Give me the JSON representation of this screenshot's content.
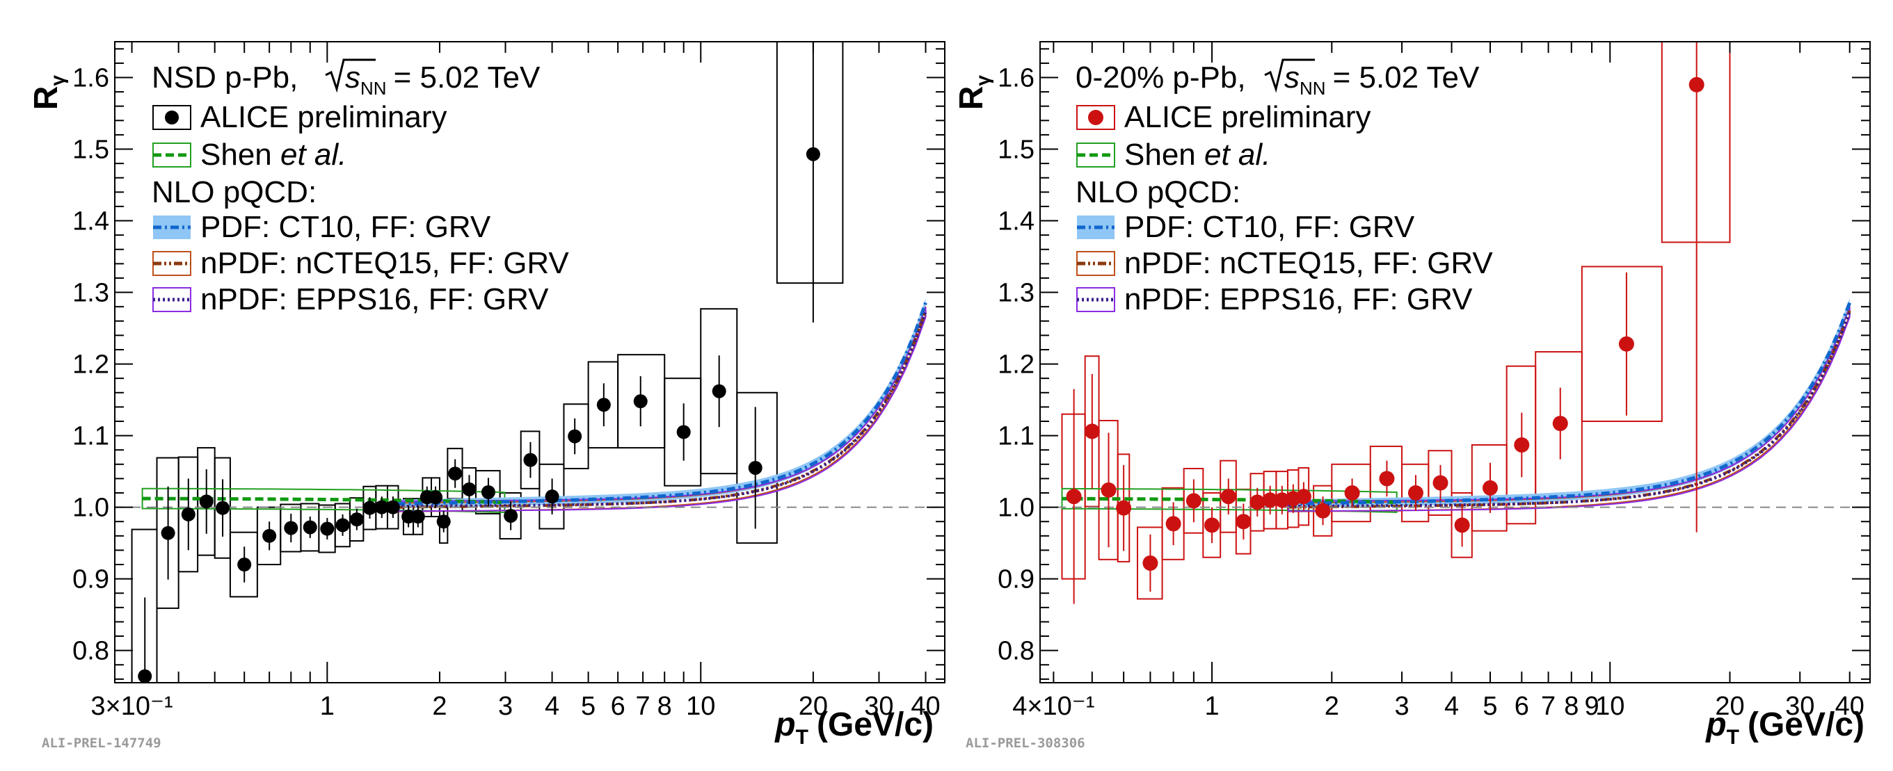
{
  "chart_data": [
    {
      "type": "scatter",
      "xscale": "log",
      "xlim": [
        0.27,
        45
      ],
      "ylim": [
        0.755,
        1.65
      ],
      "ylabel": "R",
      "ylabel_sub": "γ",
      "xlabel_prefix": "p",
      "xlabel_sub": "T",
      "xlabel_unit": "(GeV/c)",
      "yticks": [
        "0.8",
        "0.9",
        "1.0",
        "1.1",
        "1.2",
        "1.3",
        "1.4",
        "1.5",
        "1.6"
      ],
      "xticks": [
        {
          "v": 0.3,
          "label": "3×10⁻¹"
        },
        {
          "v": 1,
          "label": "1"
        },
        {
          "v": 2,
          "label": "2"
        },
        {
          "v": 3,
          "label": "3"
        },
        {
          "v": 4,
          "label": "4"
        },
        {
          "v": 5,
          "label": "5"
        },
        {
          "v": 6,
          "label": "6"
        },
        {
          "v": 7,
          "label": "7"
        },
        {
          "v": 8,
          "label": "8"
        },
        {
          "v": 10,
          "label": "10"
        },
        {
          "v": 20,
          "label": "20"
        },
        {
          "v": 30,
          "label": "30"
        },
        {
          "v": 40,
          "label": "40"
        }
      ],
      "system_text": "NSD p-Pb,",
      "sqrt_s": "s",
      "sqrt_s_sub": "NN",
      "energy_text": "= 5.02 TeV",
      "legend": [
        "ALICE preliminary",
        "Shen",
        "et al.",
        "NLO pQCD:",
        "PDF: CT10, FF: GRV",
        "nPDF: nCTEQ15, FF: GRV",
        "nPDF: EPPS16, FF: GRV"
      ],
      "prelim_tag": "ALI-PREL-147749",
      "marker_color": "#000000",
      "series": [
        {
          "name": "ALICE preliminary",
          "points": [
            {
              "x": 0.325,
              "y": 0.764,
              "stat": 0.11,
              "sys": 0.205,
              "xlo": 0.3,
              "xhi": 0.35
            },
            {
              "x": 0.375,
              "y": 0.964,
              "stat": 0.065,
              "sys": 0.105,
              "xlo": 0.35,
              "xhi": 0.4
            },
            {
              "x": 0.425,
              "y": 0.99,
              "stat": 0.05,
              "sys": 0.08,
              "xlo": 0.4,
              "xhi": 0.45
            },
            {
              "x": 0.475,
              "y": 1.008,
              "stat": 0.045,
              "sys": 0.075,
              "xlo": 0.45,
              "xhi": 0.5
            },
            {
              "x": 0.525,
              "y": 0.999,
              "stat": 0.04,
              "sys": 0.07,
              "xlo": 0.5,
              "xhi": 0.55
            },
            {
              "x": 0.6,
              "y": 0.92,
              "stat": 0.025,
              "sys": 0.045,
              "xlo": 0.55,
              "xhi": 0.65
            },
            {
              "x": 0.7,
              "y": 0.96,
              "stat": 0.02,
              "sys": 0.04,
              "xlo": 0.65,
              "xhi": 0.75
            },
            {
              "x": 0.8,
              "y": 0.971,
              "stat": 0.02,
              "sys": 0.033,
              "xlo": 0.75,
              "xhi": 0.85
            },
            {
              "x": 0.9,
              "y": 0.972,
              "stat": 0.015,
              "sys": 0.033,
              "xlo": 0.85,
              "xhi": 0.95
            },
            {
              "x": 1.0,
              "y": 0.97,
              "stat": 0.015,
              "sys": 0.033,
              "xlo": 0.95,
              "xhi": 1.05
            },
            {
              "x": 1.1,
              "y": 0.975,
              "stat": 0.015,
              "sys": 0.03,
              "xlo": 1.05,
              "xhi": 1.15
            },
            {
              "x": 1.2,
              "y": 0.983,
              "stat": 0.015,
              "sys": 0.03,
              "xlo": 1.15,
              "xhi": 1.25
            },
            {
              "x": 1.3,
              "y": 0.999,
              "stat": 0.015,
              "sys": 0.03,
              "xlo": 1.25,
              "xhi": 1.35
            },
            {
              "x": 1.4,
              "y": 1.0,
              "stat": 0.015,
              "sys": 0.03,
              "xlo": 1.35,
              "xhi": 1.45
            },
            {
              "x": 1.5,
              "y": 1.0,
              "stat": 0.015,
              "sys": 0.03,
              "xlo": 1.45,
              "xhi": 1.55
            },
            {
              "x": 1.65,
              "y": 0.987,
              "stat": 0.015,
              "sys": 0.025,
              "xlo": 1.6,
              "xhi": 1.7
            },
            {
              "x": 1.75,
              "y": 0.987,
              "stat": 0.015,
              "sys": 0.025,
              "xlo": 1.7,
              "xhi": 1.8
            },
            {
              "x": 1.85,
              "y": 1.014,
              "stat": 0.015,
              "sys": 0.027,
              "xlo": 1.8,
              "xhi": 1.9
            },
            {
              "x": 1.95,
              "y": 1.014,
              "stat": 0.015,
              "sys": 0.027,
              "xlo": 1.9,
              "xhi": 2.0
            },
            {
              "x": 2.05,
              "y": 0.98,
              "stat": 0.015,
              "sys": 0.03,
              "xlo": 2.0,
              "xhi": 2.1
            },
            {
              "x": 2.2,
              "y": 1.047,
              "stat": 0.02,
              "sys": 0.035,
              "xlo": 2.1,
              "xhi": 2.3
            },
            {
              "x": 2.4,
              "y": 1.025,
              "stat": 0.02,
              "sys": 0.03,
              "xlo": 2.3,
              "xhi": 2.5
            },
            {
              "x": 2.7,
              "y": 1.021,
              "stat": 0.02,
              "sys": 0.03,
              "xlo": 2.5,
              "xhi": 2.9
            },
            {
              "x": 3.1,
              "y": 0.988,
              "stat": 0.02,
              "sys": 0.032,
              "xlo": 2.9,
              "xhi": 3.3
            },
            {
              "x": 3.5,
              "y": 1.066,
              "stat": 0.025,
              "sys": 0.04,
              "xlo": 3.3,
              "xhi": 3.7
            },
            {
              "x": 4.0,
              "y": 1.015,
              "stat": 0.025,
              "sys": 0.045,
              "xlo": 3.7,
              "xhi": 4.3
            },
            {
              "x": 4.6,
              "y": 1.099,
              "stat": 0.025,
              "sys": 0.045,
              "xlo": 4.3,
              "xhi": 5.0
            },
            {
              "x": 5.5,
              "y": 1.143,
              "stat": 0.03,
              "sys": 0.06,
              "xlo": 5.0,
              "xhi": 6.0
            },
            {
              "x": 6.9,
              "y": 1.148,
              "stat": 0.035,
              "sys": 0.065,
              "xlo": 6.0,
              "xhi": 8.0
            },
            {
              "x": 9.0,
              "y": 1.105,
              "stat": 0.04,
              "sys": 0.075,
              "xlo": 8.0,
              "xhi": 10.0
            },
            {
              "x": 11.2,
              "y": 1.162,
              "stat": 0.05,
              "sys": 0.115,
              "xlo": 10.0,
              "xhi": 12.5
            },
            {
              "x": 14.0,
              "y": 1.055,
              "stat": 0.085,
              "sys": 0.105,
              "xlo": 12.5,
              "xhi": 16.0
            },
            {
              "x": 20.0,
              "y": 1.493,
              "stat": 0.235,
              "sys": 0.18,
              "xlo": 16.0,
              "xhi": 24.0
            }
          ]
        }
      ]
    },
    {
      "type": "scatter",
      "xscale": "log",
      "xlim": [
        0.37,
        45
      ],
      "ylim": [
        0.755,
        1.65
      ],
      "ylabel": "R",
      "ylabel_sub": "γ",
      "xlabel_prefix": "p",
      "xlabel_sub": "T",
      "xlabel_unit": "(GeV/c)",
      "yticks": [
        "0.8",
        "0.9",
        "1.0",
        "1.1",
        "1.2",
        "1.3",
        "1.4",
        "1.5",
        "1.6"
      ],
      "xticks": [
        {
          "v": 0.4,
          "label": "4×10⁻¹"
        },
        {
          "v": 1,
          "label": "1"
        },
        {
          "v": 2,
          "label": "2"
        },
        {
          "v": 3,
          "label": "3"
        },
        {
          "v": 4,
          "label": "4"
        },
        {
          "v": 5,
          "label": "5"
        },
        {
          "v": 6,
          "label": "6"
        },
        {
          "v": 7,
          "label": "7"
        },
        {
          "v": 8,
          "label": "8"
        },
        {
          "v": 9,
          "label": "9"
        },
        {
          "v": 10,
          "label": "10"
        },
        {
          "v": 20,
          "label": "20"
        },
        {
          "v": 30,
          "label": "30"
        },
        {
          "v": 40,
          "label": "40"
        }
      ],
      "system_text": "0-20% p-Pb,",
      "sqrt_s": "s",
      "sqrt_s_sub": "NN",
      "energy_text": "= 5.02 TeV",
      "legend": [
        "ALICE preliminary",
        "Shen",
        "et al.",
        "NLO pQCD:",
        "PDF: CT10, FF: GRV",
        "nPDF: nCTEQ15, FF: GRV",
        "nPDF: EPPS16, FF: GRV"
      ],
      "prelim_tag": "ALI-PREL-308306",
      "marker_color": "#cc1111",
      "series": [
        {
          "name": "ALICE preliminary",
          "points": [
            {
              "x": 0.45,
              "y": 1.015,
              "stat": 0.15,
              "sys": 0.115,
              "xlo": 0.42,
              "xhi": 0.48
            },
            {
              "x": 0.5,
              "y": 1.106,
              "stat": 0.08,
              "sys": 0.105,
              "xlo": 0.48,
              "xhi": 0.52
            },
            {
              "x": 0.55,
              "y": 1.024,
              "stat": 0.08,
              "sys": 0.097,
              "xlo": 0.52,
              "xhi": 0.58
            },
            {
              "x": 0.6,
              "y": 0.999,
              "stat": 0.06,
              "sys": 0.075,
              "xlo": 0.58,
              "xhi": 0.62
            },
            {
              "x": 0.7,
              "y": 0.922,
              "stat": 0.04,
              "sys": 0.05,
              "xlo": 0.65,
              "xhi": 0.75
            },
            {
              "x": 0.8,
              "y": 0.977,
              "stat": 0.03,
              "sys": 0.05,
              "xlo": 0.75,
              "xhi": 0.85
            },
            {
              "x": 0.9,
              "y": 1.009,
              "stat": 0.03,
              "sys": 0.045,
              "xlo": 0.85,
              "xhi": 0.95
            },
            {
              "x": 1.0,
              "y": 0.975,
              "stat": 0.025,
              "sys": 0.045,
              "xlo": 0.95,
              "xhi": 1.05
            },
            {
              "x": 1.1,
              "y": 1.015,
              "stat": 0.025,
              "sys": 0.05,
              "xlo": 1.05,
              "xhi": 1.15
            },
            {
              "x": 1.2,
              "y": 0.98,
              "stat": 0.025,
              "sys": 0.045,
              "xlo": 1.15,
              "xhi": 1.25
            },
            {
              "x": 1.3,
              "y": 1.007,
              "stat": 0.02,
              "sys": 0.04,
              "xlo": 1.25,
              "xhi": 1.35
            },
            {
              "x": 1.4,
              "y": 1.01,
              "stat": 0.02,
              "sys": 0.04,
              "xlo": 1.35,
              "xhi": 1.45
            },
            {
              "x": 1.5,
              "y": 1.01,
              "stat": 0.02,
              "sys": 0.04,
              "xlo": 1.45,
              "xhi": 1.55
            },
            {
              "x": 1.6,
              "y": 1.012,
              "stat": 0.02,
              "sys": 0.04,
              "xlo": 1.55,
              "xhi": 1.65
            },
            {
              "x": 1.7,
              "y": 1.015,
              "stat": 0.02,
              "sys": 0.04,
              "xlo": 1.65,
              "xhi": 1.75
            },
            {
              "x": 1.9,
              "y": 0.995,
              "stat": 0.02,
              "sys": 0.035,
              "xlo": 1.8,
              "xhi": 2.0
            },
            {
              "x": 2.25,
              "y": 1.02,
              "stat": 0.02,
              "sys": 0.04,
              "xlo": 2.0,
              "xhi": 2.5
            },
            {
              "x": 2.75,
              "y": 1.04,
              "stat": 0.025,
              "sys": 0.045,
              "xlo": 2.5,
              "xhi": 3.0
            },
            {
              "x": 3.25,
              "y": 1.02,
              "stat": 0.025,
              "sys": 0.04,
              "xlo": 3.0,
              "xhi": 3.5
            },
            {
              "x": 3.75,
              "y": 1.034,
              "stat": 0.025,
              "sys": 0.045,
              "xlo": 3.5,
              "xhi": 4.0
            },
            {
              "x": 4.25,
              "y": 0.975,
              "stat": 0.03,
              "sys": 0.045,
              "xlo": 4.0,
              "xhi": 4.5
            },
            {
              "x": 5.0,
              "y": 1.027,
              "stat": 0.035,
              "sys": 0.06,
              "xlo": 4.5,
              "xhi": 5.5
            },
            {
              "x": 6.0,
              "y": 1.087,
              "stat": 0.045,
              "sys": 0.11,
              "xlo": 5.5,
              "xhi": 6.5
            },
            {
              "x": 7.5,
              "y": 1.117,
              "stat": 0.05,
              "sys": 0.1,
              "xlo": 6.5,
              "xhi": 8.5
            },
            {
              "x": 11.0,
              "y": 1.228,
              "stat": 0.1,
              "sys": 0.108,
              "xlo": 8.5,
              "xhi": 13.5
            },
            {
              "x": 16.5,
              "y": 1.59,
              "stat": 0.625,
              "sys": 0.22,
              "xlo": 13.5,
              "xhi": 20.0
            }
          ]
        }
      ]
    }
  ]
}
